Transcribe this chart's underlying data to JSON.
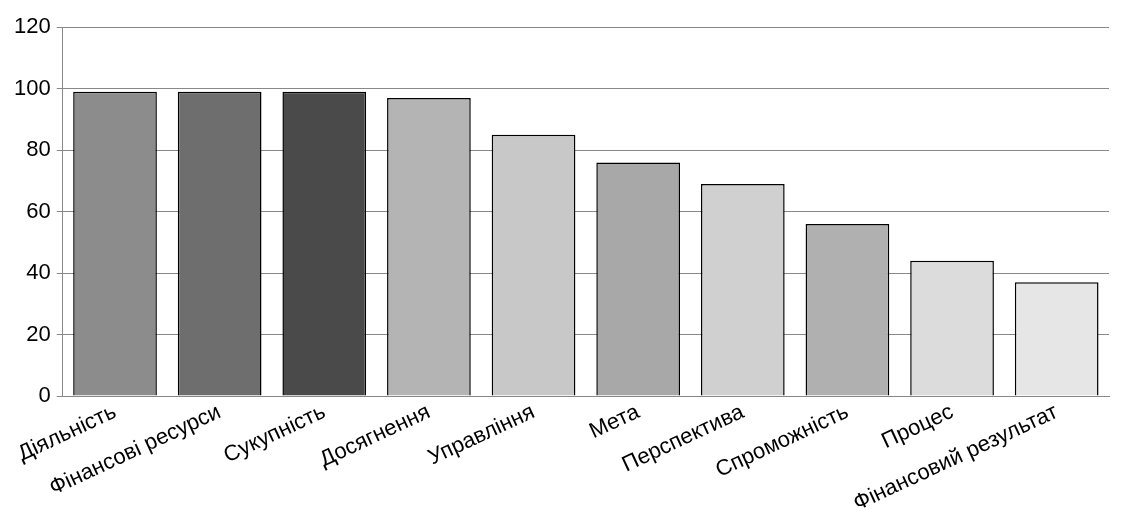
{
  "chart_data": {
    "type": "bar",
    "categories": [
      "Діяльність",
      "Фінансові ресурси",
      "Сукупність",
      "Досягнення",
      "Управління",
      "Мета",
      "Перспектива",
      "Спроможність",
      "Процес",
      "Фінансовий результат"
    ],
    "values": [
      99,
      99,
      99,
      97,
      85,
      76,
      69,
      56,
      44,
      37
    ],
    "colors": [
      "#8c8c8c",
      "#6e6e6e",
      "#4a4a4a",
      "#b4b4b4",
      "#c8c8c8",
      "#a8a8a8",
      "#d0d0d0",
      "#b0b0b0",
      "#dcdcdc",
      "#e6e6e6"
    ],
    "ylim": [
      0,
      120
    ],
    "yticks": [
      0,
      20,
      40,
      60,
      80,
      100,
      120
    ],
    "grid": "y",
    "legend": false
  }
}
